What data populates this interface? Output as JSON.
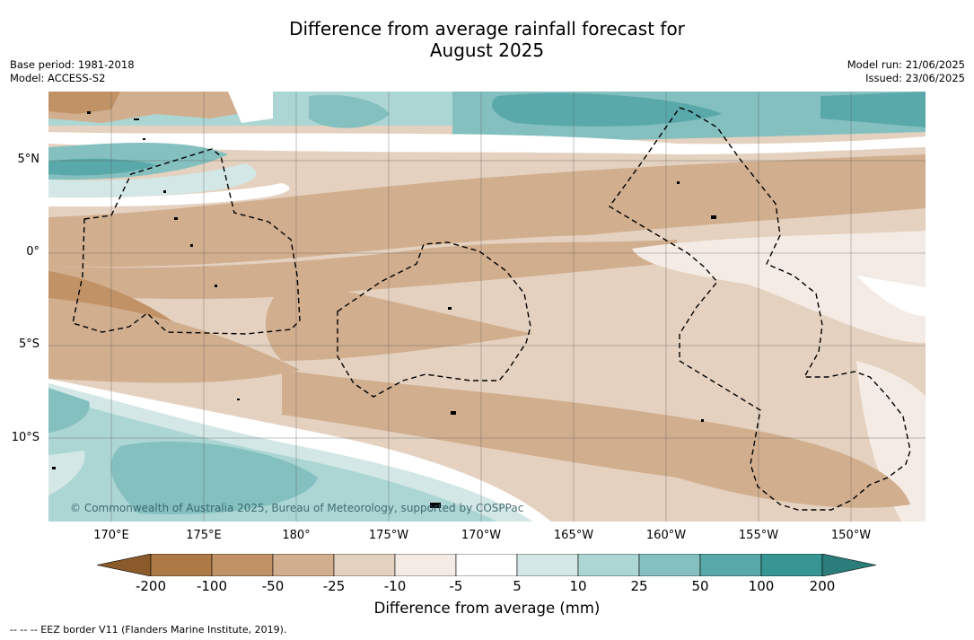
{
  "title_line1": "Difference from average rainfall forecast for",
  "title_line2": "August 2025",
  "base_period": "Base period: 1981-2018",
  "model": "Model: ACCESS-S2",
  "model_run": "Model run: 21/06/2025",
  "issued": "Issued: 23/06/2025",
  "lat_labels": [
    "5°N",
    "0°",
    "5°S",
    "10°S"
  ],
  "lon_labels": [
    "170°E",
    "175°E",
    "180°",
    "175°W",
    "170°W",
    "165°W",
    "160°W",
    "155°W",
    "150°W"
  ],
  "copyright": "© Commonwealth of Australia 2025, Bureau of Meteorology, supported by COSPPac",
  "colorbar": {
    "ticks": [
      "-200",
      "-100",
      "-50",
      "-25",
      "-10",
      "-5",
      "5",
      "10",
      "25",
      "50",
      "100",
      "200"
    ],
    "colors": [
      "#8b5a2b",
      "#ad7a45",
      "#c09266",
      "#d1ae8e",
      "#e4d1bf",
      "#f4ebe4",
      "#ffffff",
      "#d3e8e6",
      "#acd6d4",
      "#84c0bf",
      "#5aa9aa",
      "#379694",
      "#2a7d7a"
    ],
    "label": "Difference from average (mm)"
  },
  "legend_note": "--  --  -- EEZ border V11 (Flanders Marine Institute, 2019)."
}
